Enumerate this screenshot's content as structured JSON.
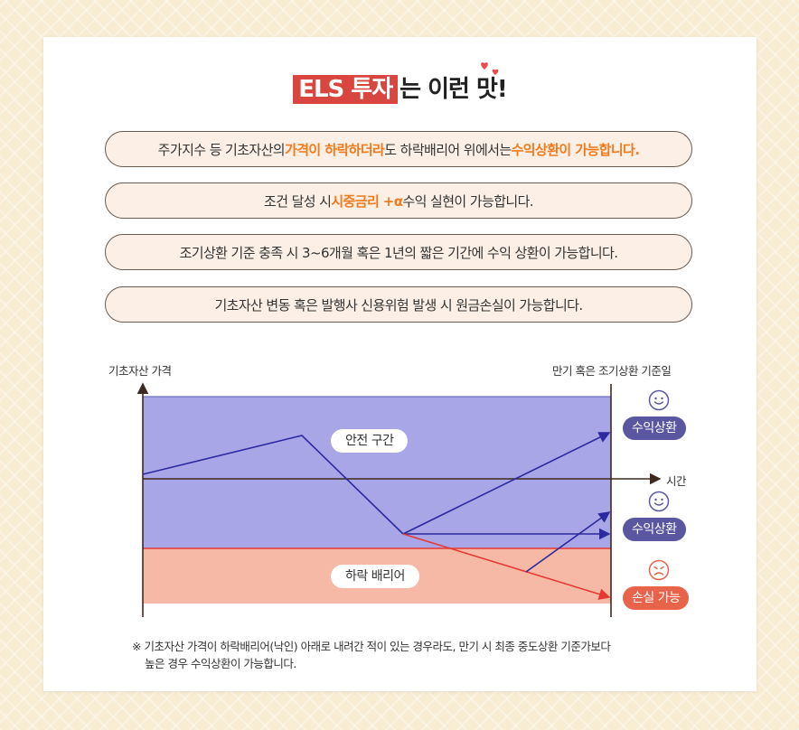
{
  "title": {
    "highlight": "ELS 투자",
    "rest": "는 이런 맛!"
  },
  "pills": [
    {
      "parts": [
        {
          "text": "주가지수 등 기초자산의 ",
          "emphasis": false
        },
        {
          "text": "가격이 하락하더라",
          "emphasis": true
        },
        {
          "text": "도 하락배리어 위에서는 ",
          "emphasis": false
        },
        {
          "text": "수익상환이 가능합니다.",
          "emphasis": true
        }
      ]
    },
    {
      "parts": [
        {
          "text": "조건 달성 시 ",
          "emphasis": false
        },
        {
          "text": "시중금리 +α",
          "emphasis": true
        },
        {
          "text": " 수익 실현이 가능합니다.",
          "emphasis": false
        }
      ]
    },
    {
      "parts": [
        {
          "text": "조기상환 기준 충족 시 3~6개월 혹은 1년의 짧은 기간에 수익 상환이 가능합니다.",
          "emphasis": false
        }
      ]
    },
    {
      "parts": [
        {
          "text": "기초자산 변동 혹은 발행사 신용위험 발생 시 원금손실이 가능합니다.",
          "emphasis": false
        }
      ]
    }
  ],
  "diagram": {
    "y_axis_label": "기초자산 가격",
    "maturity_label": "만기 혹은 조기상환 기준일",
    "x_axis_label": "시간",
    "safe_zone_label": "안전 구간",
    "barrier_label": "하락 배리어",
    "results": [
      {
        "label": "수익상환",
        "face": "smile-icon"
      },
      {
        "label": "수익상환",
        "face": "smile-icon"
      },
      {
        "label": "손실 가능",
        "face": "sad-icon"
      }
    ],
    "colors": {
      "safe_zone": "#a8a6e6",
      "barrier_zone": "#f6b9a6",
      "path": "#2c2a9e",
      "loss_path": "#e53935",
      "profit_badge": "#5a57a0",
      "loss_badge": "#e7634a",
      "axis": "#3e2a1f"
    }
  },
  "note": {
    "line1": "※ 기초자산 가격이 하락배리어(낙인) 아래로 내려간 적이 있는 경우라도, 만기 시 최종 중도상환 기준가보다",
    "line2": "높은 경우 수익상환이 가능합니다."
  },
  "accent_colors": {
    "emphasis": "#f07a1c",
    "title_box": "#d9453f",
    "heart": "#e94c4c"
  }
}
